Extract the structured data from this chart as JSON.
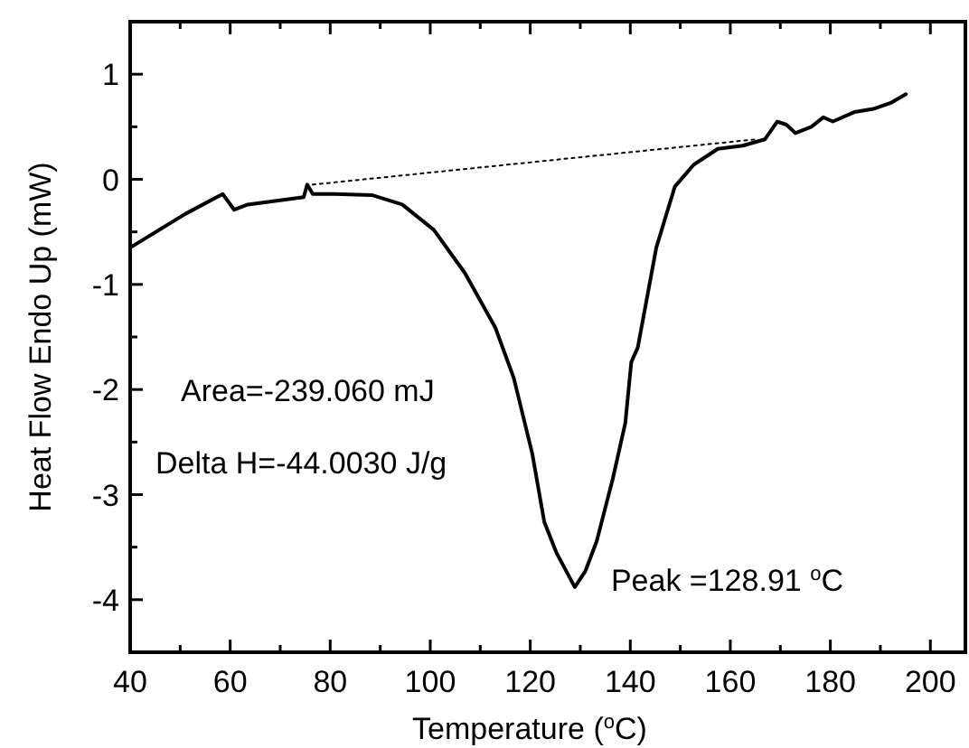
{
  "chart_data": {
    "type": "line",
    "xlabel": "Temperature ($^{o}$C)",
    "ylabel": "Heat Flow Endo Up (mW)",
    "xlim": [
      40,
      207
    ],
    "ylim": [
      -4.5,
      1.5
    ],
    "xticks": [
      40,
      {
        "value": 50,
        "label": null
      },
      60,
      {
        "value": 70,
        "label": null
      },
      80,
      {
        "value": 90,
        "label": null
      },
      100,
      {
        "value": 110,
        "label": null
      },
      120,
      {
        "value": 130,
        "label": null
      },
      140,
      {
        "value": 150,
        "label": null
      },
      160,
      {
        "value": 170,
        "label": null
      },
      180,
      {
        "value": 190,
        "label": null
      },
      200
    ],
    "yticks": [
      {
        "value": -4.5,
        "label": null
      },
      -4,
      {
        "value": -3.5,
        "label": null
      },
      -3,
      {
        "value": -2.5,
        "label": null
      },
      -2,
      {
        "value": -1.5,
        "label": null
      },
      -1,
      {
        "value": -0.5,
        "label": null
      },
      0,
      {
        "value": 0.5,
        "label": null
      },
      1
    ],
    "grid": false,
    "series": [
      {
        "color": "#000000",
        "line_style": "solid",
        "x": [
          40,
          51,
          58.5,
          60.8,
          63.5,
          74.7,
          75.4,
          76.5,
          80.8,
          88.3,
          94.4,
          100.7,
          106.9,
          113,
          116.7,
          120.4,
          122.8,
          125.3,
          128.9,
          131,
          133.3,
          136.5,
          139,
          140.2,
          141.5,
          145.2,
          148.9,
          152.7,
          157.5,
          162.5,
          166.9,
          169.4,
          171.2,
          173,
          176.2,
          178.6,
          180.5,
          184.8,
          188.6,
          192.2,
          195.1
        ],
        "values": [
          -0.65,
          -0.33,
          -0.14,
          -0.29,
          -0.24,
          -0.17,
          -0.05,
          -0.14,
          -0.14,
          -0.15,
          -0.24,
          -0.48,
          -0.89,
          -1.41,
          -1.89,
          -2.61,
          -3.26,
          -3.56,
          -3.88,
          -3.73,
          -3.44,
          -2.85,
          -2.32,
          -1.74,
          -1.6,
          -0.65,
          -0.07,
          0.14,
          0.29,
          0.32,
          0.38,
          0.55,
          0.52,
          0.44,
          0.5,
          0.59,
          0.55,
          0.64,
          0.67,
          0.73,
          0.81
        ]
      },
      {
        "color": "#000000",
        "line_style": "dotted",
        "x": [
          76.5,
          165
        ],
        "values": [
          -0.05,
          0.38
        ]
      }
    ],
    "annotations": [
      "Area=-239.060 mJ",
      "Delta H=-44.0030 J/g",
      {
        "text": "Peak =128.91 $^{o}$C",
        "x": 128.91,
        "y": -3.88
      }
    ]
  }
}
